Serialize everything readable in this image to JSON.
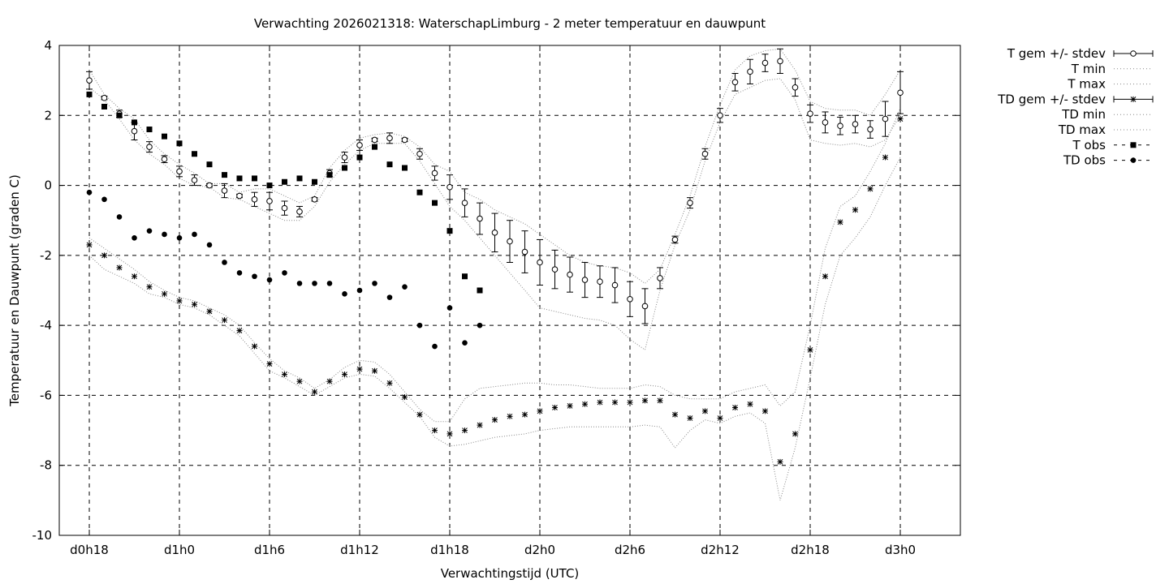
{
  "chart_data": {
    "type": "scatter",
    "title": "Verwachting 2026021318: WaterschapLimburg - 2 meter temperatuur en dauwpunt",
    "xlabel": "Verwachtingstijd (UTC)",
    "ylabel": "Temperatuur en Dauwpunt (graden C)",
    "x_unit": "hours from d0h18",
    "xlim": [
      -2,
      58
    ],
    "ylim": [
      -10,
      4
    ],
    "y_ticks": [
      4,
      2,
      0,
      -2,
      -4,
      -6,
      -8,
      -10
    ],
    "x_ticks": [
      {
        "x": 0,
        "label": "d0h18"
      },
      {
        "x": 6,
        "label": "d1h0"
      },
      {
        "x": 12,
        "label": "d1h6"
      },
      {
        "x": 18,
        "label": "d1h12"
      },
      {
        "x": 24,
        "label": "d1h18"
      },
      {
        "x": 30,
        "label": "d2h0"
      },
      {
        "x": 36,
        "label": "d2h6"
      },
      {
        "x": 42,
        "label": "d2h12"
      },
      {
        "x": 48,
        "label": "d2h18"
      },
      {
        "x": 54,
        "label": "d3h0"
      }
    ],
    "grid": true,
    "legend_position": "outside-right-top",
    "legend": [
      "T gem +/- stdev",
      "T min",
      "T max",
      "TD gem +/- stdev",
      "TD min",
      "TD max",
      "T obs",
      "TD obs"
    ],
    "series": [
      {
        "name": "T gem +/- stdev",
        "x": [
          0,
          1,
          2,
          3,
          4,
          5,
          6,
          7,
          8,
          9,
          10,
          11,
          12,
          13,
          14,
          15,
          16,
          17,
          18,
          19,
          20,
          21,
          22,
          23,
          24,
          25,
          26,
          27,
          28,
          29,
          30,
          31,
          32,
          33,
          34,
          35,
          36,
          37,
          38,
          39,
          40,
          41,
          42,
          43,
          44,
          45,
          46,
          47,
          48,
          49,
          50,
          51,
          52,
          53,
          54
        ],
        "y": [
          3.0,
          2.5,
          2.05,
          1.55,
          1.1,
          0.75,
          0.4,
          0.15,
          0.0,
          -0.15,
          -0.3,
          -0.4,
          -0.45,
          -0.65,
          -0.75,
          -0.4,
          0.35,
          0.8,
          1.15,
          1.3,
          1.35,
          1.3,
          0.9,
          0.35,
          -0.05,
          -0.5,
          -0.95,
          -1.35,
          -1.6,
          -1.9,
          -2.2,
          -2.4,
          -2.55,
          -2.7,
          -2.75,
          -2.85,
          -3.25,
          -3.45,
          -2.65,
          -1.55,
          -0.5,
          0.9,
          2.0,
          2.95,
          3.25,
          3.5,
          3.55,
          2.8,
          2.05,
          1.8,
          1.7,
          1.75,
          1.6,
          1.9,
          2.65
        ],
        "stdev": [
          0.25,
          0.05,
          0.1,
          0.25,
          0.15,
          0.1,
          0.15,
          0.15,
          0.05,
          0.2,
          0.05,
          0.2,
          0.25,
          0.2,
          0.15,
          0.05,
          0.1,
          0.15,
          0.15,
          0.05,
          0.15,
          0.05,
          0.15,
          0.2,
          0.35,
          0.4,
          0.45,
          0.55,
          0.6,
          0.6,
          0.65,
          0.55,
          0.5,
          0.5,
          0.45,
          0.5,
          0.5,
          0.5,
          0.3,
          0.1,
          0.15,
          0.15,
          0.2,
          0.25,
          0.35,
          0.25,
          0.35,
          0.25,
          0.25,
          0.3,
          0.25,
          0.25,
          0.25,
          0.5,
          0.6
        ]
      },
      {
        "name": "T min",
        "x": [
          0,
          1,
          2,
          3,
          4,
          5,
          6,
          7,
          8,
          9,
          10,
          11,
          12,
          13,
          14,
          15,
          16,
          17,
          18,
          19,
          20,
          21,
          22,
          23,
          24,
          25,
          26,
          27,
          28,
          29,
          30,
          31,
          32,
          33,
          34,
          35,
          36,
          37,
          38,
          39,
          40,
          41,
          42,
          43,
          44,
          45,
          46,
          47,
          48,
          49,
          50,
          51,
          52,
          53,
          54
        ],
        "y": [
          2.8,
          2.45,
          1.9,
          1.3,
          0.9,
          0.6,
          0.2,
          0.0,
          -0.05,
          -0.35,
          -0.4,
          -0.6,
          -0.8,
          -1.0,
          -1.0,
          -0.6,
          0.1,
          0.6,
          1.0,
          1.2,
          1.2,
          1.2,
          0.7,
          0.05,
          -0.6,
          -1.0,
          -1.5,
          -2.0,
          -2.5,
          -3.0,
          -3.5,
          -3.6,
          -3.7,
          -3.8,
          -3.85,
          -4.0,
          -4.4,
          -4.7,
          -3.0,
          -1.7,
          -0.7,
          0.7,
          1.8,
          2.6,
          2.8,
          3.0,
          3.05,
          2.45,
          1.3,
          1.2,
          1.15,
          1.2,
          1.1,
          1.3,
          2.0
        ]
      },
      {
        "name": "T max",
        "x": [
          0,
          1,
          2,
          3,
          4,
          5,
          6,
          7,
          8,
          9,
          10,
          11,
          12,
          13,
          14,
          15,
          16,
          17,
          18,
          19,
          20,
          21,
          22,
          23,
          24,
          25,
          26,
          27,
          28,
          29,
          30,
          31,
          32,
          33,
          34,
          35,
          36,
          37,
          38,
          39,
          40,
          41,
          42,
          43,
          44,
          45,
          46,
          47,
          48,
          49,
          50,
          51,
          52,
          53,
          54
        ],
        "y": [
          3.3,
          2.6,
          2.2,
          1.9,
          1.3,
          0.9,
          0.6,
          0.35,
          0.05,
          0.05,
          -0.2,
          -0.1,
          -0.1,
          -0.3,
          -0.5,
          -0.3,
          0.5,
          1.0,
          1.35,
          1.45,
          1.5,
          1.4,
          1.1,
          0.6,
          0.4,
          -0.2,
          -0.4,
          -0.7,
          -0.9,
          -1.1,
          -1.4,
          -1.7,
          -2.0,
          -2.2,
          -2.3,
          -2.35,
          -2.5,
          -2.8,
          -2.4,
          -1.4,
          -0.3,
          1.1,
          2.3,
          3.3,
          3.7,
          3.85,
          3.9,
          3.3,
          2.4,
          2.2,
          2.15,
          2.15,
          2.0,
          2.6,
          3.3
        ]
      },
      {
        "name": "TD gem +/- stdev",
        "x": [
          0,
          1,
          2,
          3,
          4,
          5,
          6,
          7,
          8,
          9,
          10,
          11,
          12,
          13,
          14,
          15,
          16,
          17,
          18,
          19,
          20,
          21,
          22,
          23,
          24,
          25,
          26,
          27,
          28,
          29,
          30,
          31,
          32,
          33,
          34,
          35,
          36,
          37,
          38,
          39,
          40,
          41,
          42,
          43,
          44,
          45,
          46,
          47,
          48,
          49,
          50,
          51,
          52,
          53,
          54
        ],
        "y": [
          -1.7,
          -2.0,
          -2.35,
          -2.6,
          -2.9,
          -3.1,
          -3.3,
          -3.4,
          -3.6,
          -3.85,
          -4.15,
          -4.6,
          -5.1,
          -5.4,
          -5.6,
          -5.9,
          -5.6,
          -5.4,
          -5.25,
          -5.3,
          -5.65,
          -6.05,
          -6.55,
          -7.0,
          -7.1,
          -7.0,
          -6.85,
          -6.7,
          -6.6,
          -6.55,
          -6.45,
          -6.35,
          -6.3,
          -6.25,
          -6.2,
          -6.2,
          -6.2,
          -6.15,
          -6.15,
          -6.55,
          -6.65,
          -6.45,
          -6.65,
          -6.35,
          -6.25,
          -6.45,
          -7.9,
          -7.1,
          -4.7,
          -2.6,
          -1.05,
          -0.7,
          -0.1,
          0.8,
          1.9
        ]
      },
      {
        "name": "TD min",
        "x": [
          0,
          1,
          2,
          3,
          4,
          5,
          6,
          7,
          8,
          9,
          10,
          11,
          12,
          13,
          14,
          15,
          16,
          17,
          18,
          19,
          20,
          21,
          22,
          23,
          24,
          25,
          26,
          27,
          28,
          29,
          30,
          31,
          32,
          33,
          34,
          35,
          36,
          37,
          38,
          39,
          40,
          41,
          42,
          43,
          44,
          45,
          46,
          47,
          48,
          49,
          50,
          51,
          52,
          53,
          54
        ],
        "y": [
          -2.0,
          -2.4,
          -2.6,
          -2.8,
          -3.1,
          -3.2,
          -3.4,
          -3.5,
          -3.7,
          -4.0,
          -4.3,
          -4.8,
          -5.3,
          -5.5,
          -5.75,
          -6.0,
          -5.75,
          -5.5,
          -5.4,
          -5.45,
          -5.8,
          -6.2,
          -6.6,
          -7.2,
          -7.45,
          -7.4,
          -7.3,
          -7.2,
          -7.15,
          -7.1,
          -7.0,
          -6.95,
          -6.9,
          -6.9,
          -6.9,
          -6.9,
          -6.9,
          -6.85,
          -6.9,
          -7.5,
          -7.0,
          -6.7,
          -6.8,
          -6.6,
          -6.5,
          -6.8,
          -9.0,
          -7.5,
          -5.5,
          -3.4,
          -2.0,
          -1.5,
          -0.9,
          0.0,
          0.8
        ]
      },
      {
        "name": "TD max",
        "x": [
          0,
          1,
          2,
          3,
          4,
          5,
          6,
          7,
          8,
          9,
          10,
          11,
          12,
          13,
          14,
          15,
          16,
          17,
          18,
          19,
          20,
          21,
          22,
          23,
          24,
          25,
          26,
          27,
          28,
          29,
          30,
          31,
          32,
          33,
          34,
          35,
          36,
          37,
          38,
          39,
          40,
          41,
          42,
          43,
          44,
          45,
          46,
          47,
          48,
          49,
          50,
          51,
          52,
          53,
          54
        ],
        "y": [
          -1.5,
          -1.8,
          -2.1,
          -2.4,
          -2.75,
          -3.0,
          -3.2,
          -3.3,
          -3.5,
          -3.7,
          -4.0,
          -4.5,
          -4.95,
          -5.3,
          -5.5,
          -5.8,
          -5.55,
          -5.2,
          -5.0,
          -5.05,
          -5.4,
          -5.9,
          -6.4,
          -6.75,
          -6.75,
          -6.1,
          -5.8,
          -5.75,
          -5.7,
          -5.65,
          -5.65,
          -5.7,
          -5.7,
          -5.75,
          -5.8,
          -5.8,
          -5.8,
          -5.7,
          -5.75,
          -6.0,
          -6.1,
          -6.1,
          -6.1,
          -5.9,
          -5.8,
          -5.7,
          -6.3,
          -5.9,
          -4.0,
          -1.8,
          -0.6,
          -0.3,
          0.4,
          1.2,
          2.2
        ]
      },
      {
        "name": "T obs",
        "x": [
          0,
          1,
          2,
          3,
          4,
          5,
          6,
          7,
          8,
          9,
          10,
          11,
          12,
          13,
          14,
          15,
          16,
          17,
          18,
          19,
          20,
          21,
          22,
          23,
          24,
          25,
          26
        ],
        "y": [
          2.6,
          2.25,
          2.0,
          1.8,
          1.6,
          1.4,
          1.2,
          0.9,
          0.6,
          0.3,
          0.2,
          0.2,
          0.0,
          0.1,
          0.2,
          0.1,
          0.3,
          0.5,
          0.8,
          1.1,
          0.6,
          0.5,
          -0.2,
          -0.5,
          -1.3,
          -2.6,
          -3.0
        ]
      },
      {
        "name": "TD obs",
        "x": [
          0,
          1,
          2,
          3,
          4,
          5,
          6,
          7,
          8,
          9,
          10,
          11,
          12,
          13,
          14,
          15,
          16,
          17,
          18,
          19,
          20,
          21,
          22,
          23,
          24,
          25,
          26
        ],
        "y": [
          -0.2,
          -0.4,
          -0.9,
          -1.5,
          -1.3,
          -1.4,
          -1.5,
          -1.4,
          -1.7,
          -2.2,
          -2.5,
          -2.6,
          -2.7,
          -2.5,
          -2.8,
          -2.8,
          -2.8,
          -3.1,
          -3.0,
          -2.8,
          -3.2,
          -2.9,
          -4.0,
          -4.6,
          -3.5,
          -4.5,
          -4.0
        ]
      }
    ]
  }
}
